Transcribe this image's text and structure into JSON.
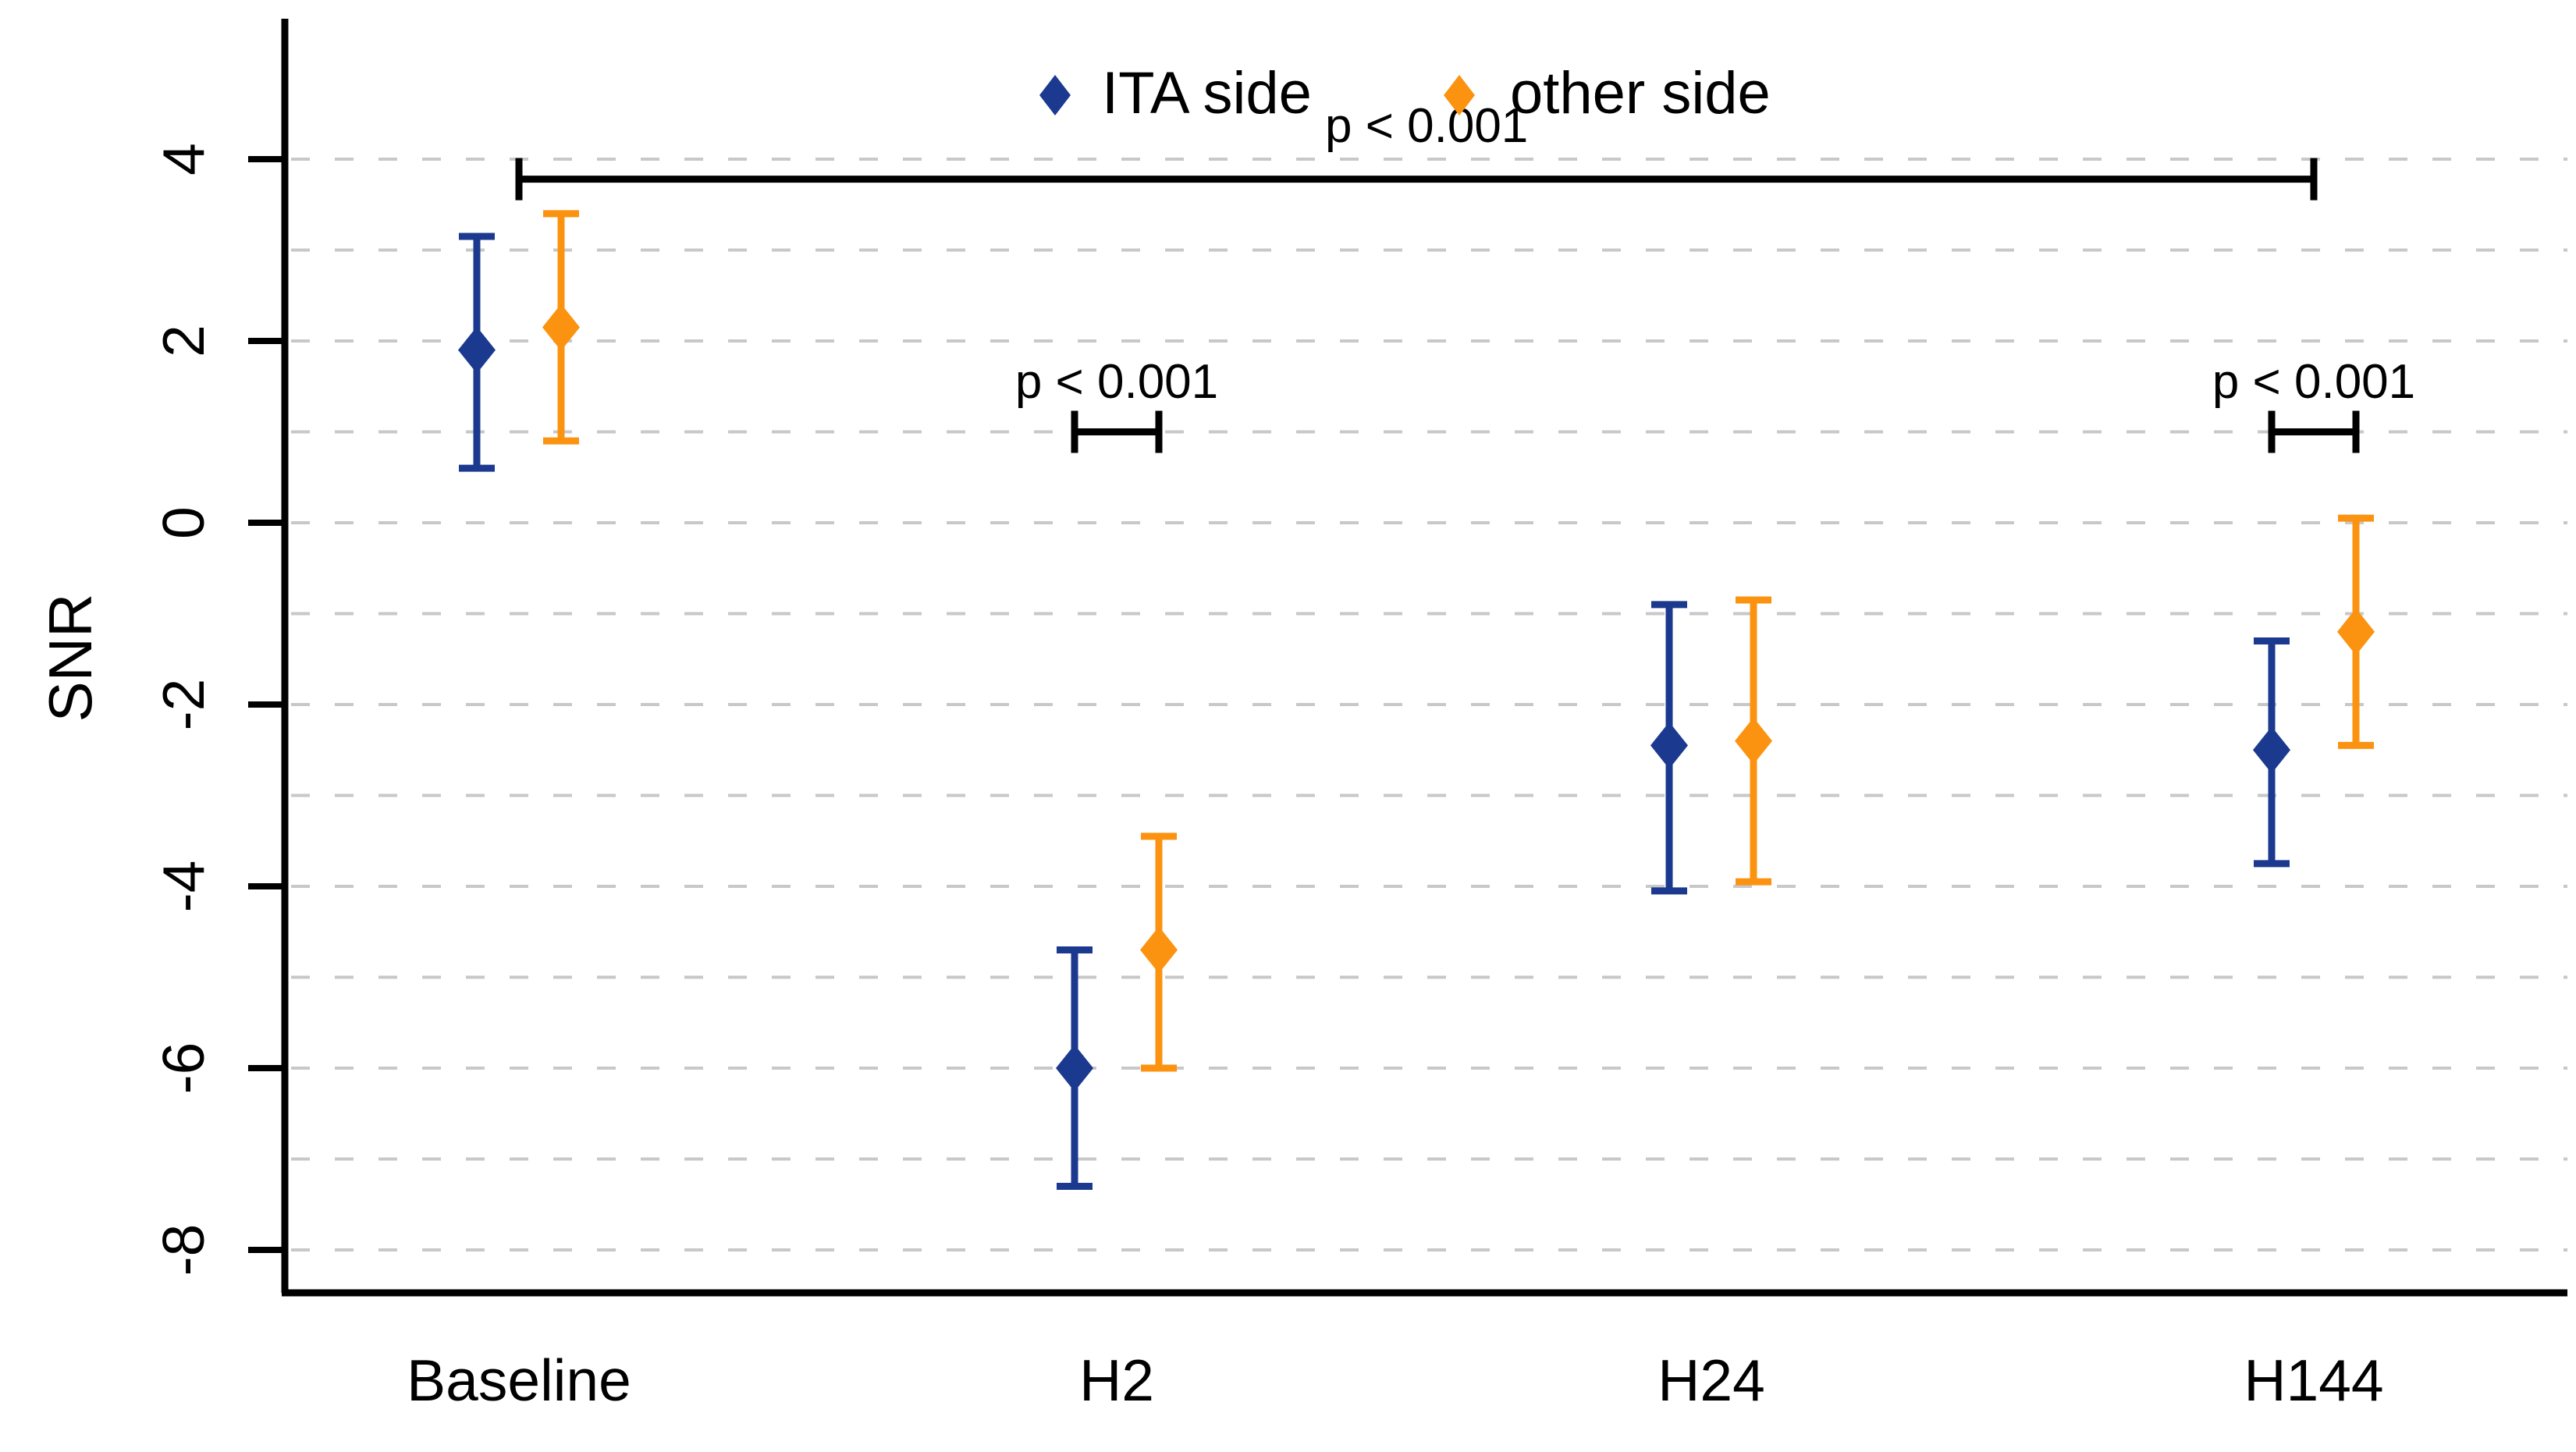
{
  "chart_data": {
    "type": "scatter",
    "subtype": "point-estimate-with-error-bars",
    "title": "",
    "ylabel": "SNR",
    "xlabel": "",
    "categories": [
      "Baseline",
      "H2",
      "H24",
      "H144"
    ],
    "ylim": [
      -8.5,
      5.5
    ],
    "yticks": [
      4,
      2,
      0,
      -2,
      -4,
      -6,
      -8
    ],
    "grid": {
      "horizontal": true,
      "style": "dashed",
      "step": 1,
      "color": "#c8c8c8"
    },
    "legend_position": "top-center",
    "series": [
      {
        "name": "ITA side",
        "color": "#1b3a8f",
        "marker": "diamond",
        "means": [
          1.9,
          -6.0,
          -2.45,
          -2.5
        ],
        "ci_low": [
          0.6,
          -7.3,
          -4.05,
          -3.75
        ],
        "ci_high": [
          3.15,
          -4.7,
          -0.9,
          -1.3
        ]
      },
      {
        "name": "other side",
        "color": "#fb9310",
        "marker": "diamond",
        "means": [
          2.15,
          -4.7,
          -2.4,
          -1.2
        ],
        "ci_low": [
          0.9,
          -6.0,
          -3.95,
          -2.45
        ],
        "ci_high": [
          3.4,
          -3.45,
          -0.85,
          0.05
        ]
      }
    ],
    "annotations": [
      {
        "type": "significance-bracket",
        "label": "p < 0.001",
        "span": [
          "Baseline",
          "H144"
        ],
        "y": 3.78
      },
      {
        "type": "significance-bracket",
        "label": "p < 0.001",
        "group": "H2",
        "y": 1.0
      },
      {
        "type": "significance-bracket",
        "label": "p < 0.001",
        "group": "H144",
        "y": 1.0
      }
    ]
  }
}
